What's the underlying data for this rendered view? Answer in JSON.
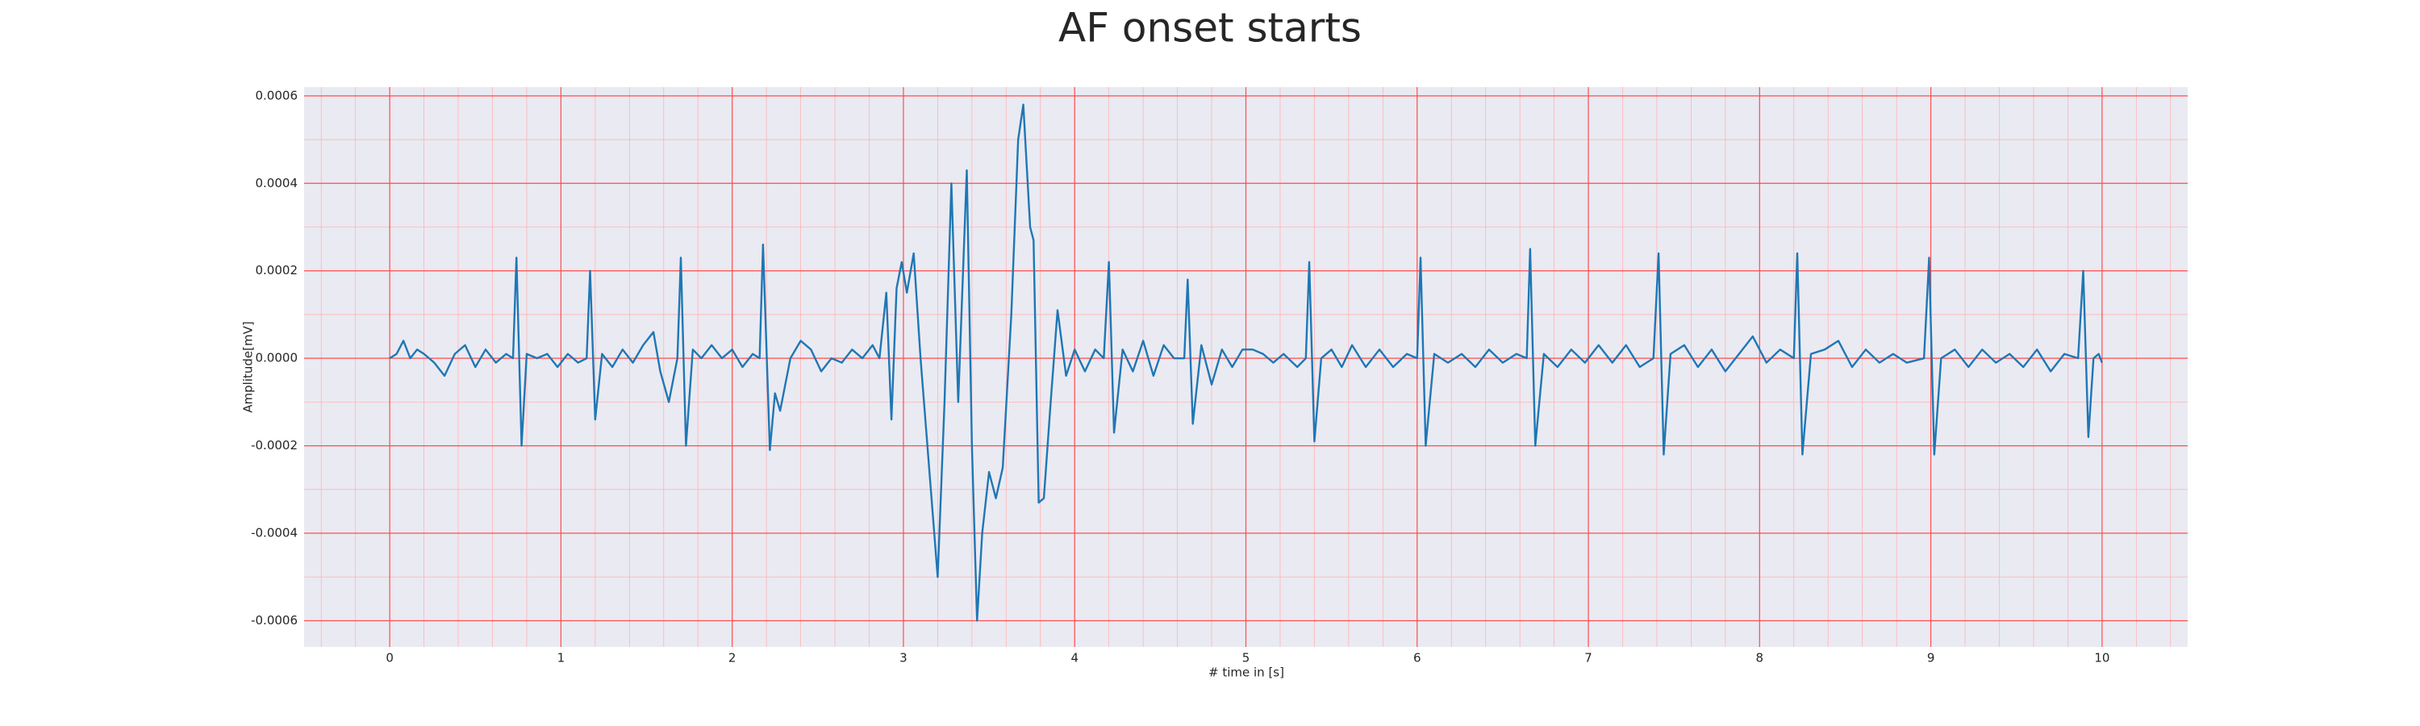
{
  "chart_data": {
    "type": "line",
    "title": "AF onset starts",
    "xlabel": "# time in [s]",
    "ylabel": "Amplitude[mV]",
    "x": [
      0,
      0.04,
      0.08,
      0.12,
      0.16,
      0.2,
      0.26,
      0.32,
      0.38,
      0.44,
      0.5,
      0.56,
      0.62,
      0.68,
      0.72,
      0.74,
      0.77,
      0.8,
      0.86,
      0.92,
      0.98,
      1.04,
      1.1,
      1.15,
      1.17,
      1.2,
      1.24,
      1.3,
      1.36,
      1.42,
      1.48,
      1.54,
      1.58,
      1.63,
      1.68,
      1.7,
      1.73,
      1.77,
      1.82,
      1.88,
      1.94,
      2.0,
      2.06,
      2.12,
      2.16,
      2.18,
      2.22,
      2.25,
      2.28,
      2.34,
      2.4,
      2.46,
      2.52,
      2.58,
      2.64,
      2.7,
      2.76,
      2.82,
      2.86,
      2.9,
      2.93,
      2.96,
      2.99,
      3.02,
      3.06,
      3.1,
      3.16,
      3.2,
      3.24,
      3.28,
      3.32,
      3.37,
      3.4,
      3.43,
      3.46,
      3.5,
      3.54,
      3.58,
      3.63,
      3.67,
      3.7,
      3.74,
      3.76,
      3.79,
      3.82,
      3.86,
      3.9,
      3.95,
      4.0,
      4.06,
      4.12,
      4.17,
      4.2,
      4.23,
      4.28,
      4.34,
      4.4,
      4.46,
      4.52,
      4.58,
      4.64,
      4.66,
      4.69,
      4.74,
      4.8,
      4.86,
      4.92,
      4.98,
      5.04,
      5.1,
      5.16,
      5.22,
      5.3,
      5.35,
      5.37,
      5.4,
      5.44,
      5.5,
      5.56,
      5.62,
      5.7,
      5.78,
      5.86,
      5.94,
      6.0,
      6.02,
      6.05,
      6.1,
      6.18,
      6.26,
      6.34,
      6.42,
      6.5,
      6.58,
      6.64,
      6.66,
      6.69,
      6.74,
      6.82,
      6.9,
      6.98,
      7.06,
      7.14,
      7.22,
      7.3,
      7.38,
      7.41,
      7.44,
      7.48,
      7.56,
      7.64,
      7.72,
      7.8,
      7.88,
      7.96,
      8.04,
      8.12,
      8.2,
      8.22,
      8.25,
      8.3,
      8.38,
      8.46,
      8.54,
      8.62,
      8.7,
      8.78,
      8.86,
      8.96,
      8.99,
      9.02,
      9.06,
      9.14,
      9.22,
      9.3,
      9.38,
      9.46,
      9.54,
      9.62,
      9.7,
      9.78,
      9.86,
      9.89,
      9.92,
      9.95,
      9.98,
      10.0
    ],
    "series": [
      {
        "color": "#1f77b4",
        "values": [
          0,
          1e-05,
          4e-05,
          0,
          2e-05,
          1e-05,
          -1e-05,
          -4e-05,
          1e-05,
          3e-05,
          -2e-05,
          2e-05,
          -1e-05,
          1e-05,
          0,
          0.00023,
          -0.0002,
          1e-05,
          0,
          1e-05,
          -2e-05,
          1e-05,
          -1e-05,
          0,
          0.0002,
          -0.00014,
          1e-05,
          -2e-05,
          2e-05,
          -1e-05,
          3e-05,
          6e-05,
          -3e-05,
          -0.0001,
          0,
          0.00023,
          -0.0002,
          2e-05,
          0,
          3e-05,
          0,
          2e-05,
          -2e-05,
          1e-05,
          0,
          0.00026,
          -0.00021,
          -8e-05,
          -0.00012,
          0,
          4e-05,
          2e-05,
          -3e-05,
          0,
          -1e-05,
          2e-05,
          0,
          3e-05,
          0,
          0.00015,
          -0.00014,
          0.00016,
          0.00022,
          0.00015,
          0.00024,
          0,
          -0.0003,
          -0.0005,
          -0.0001,
          0.0004,
          -0.0001,
          0.00043,
          -0.0002,
          -0.0006,
          -0.0004,
          -0.00026,
          -0.00032,
          -0.00025,
          0.0001,
          0.0005,
          0.00058,
          0.0003,
          0.00027,
          -0.00033,
          -0.00032,
          -0.0001,
          0.00011,
          -4e-05,
          2e-05,
          -3e-05,
          2e-05,
          0,
          0.00022,
          -0.00017,
          2e-05,
          -3e-05,
          4e-05,
          -4e-05,
          3e-05,
          0,
          0,
          0.00018,
          -0.00015,
          3e-05,
          -6e-05,
          2e-05,
          -2e-05,
          2e-05,
          2e-05,
          1e-05,
          -1e-05,
          1e-05,
          -2e-05,
          0,
          0.00022,
          -0.00019,
          0,
          2e-05,
          -2e-05,
          3e-05,
          -2e-05,
          2e-05,
          -2e-05,
          1e-05,
          0,
          0.00023,
          -0.0002,
          1e-05,
          -1e-05,
          1e-05,
          -2e-05,
          2e-05,
          -1e-05,
          1e-05,
          0,
          0.00025,
          -0.0002,
          1e-05,
          -2e-05,
          2e-05,
          -1e-05,
          3e-05,
          -1e-05,
          3e-05,
          -2e-05,
          0,
          0.00024,
          -0.00022,
          1e-05,
          3e-05,
          -2e-05,
          2e-05,
          -3e-05,
          1e-05,
          5e-05,
          -1e-05,
          2e-05,
          0,
          0.00024,
          -0.00022,
          1e-05,
          2e-05,
          4e-05,
          -2e-05,
          2e-05,
          -1e-05,
          1e-05,
          -1e-05,
          0,
          0.00023,
          -0.00022,
          0,
          2e-05,
          -2e-05,
          2e-05,
          -1e-05,
          1e-05,
          -2e-05,
          2e-05,
          -3e-05,
          1e-05,
          0,
          0.0002,
          -0.00018,
          0,
          1e-05,
          -1e-05
        ]
      }
    ],
    "xlim": [
      -0.5,
      10.5
    ],
    "ylim": [
      -0.00066,
      0.00062
    ],
    "xticks": [
      0,
      1,
      2,
      3,
      4,
      5,
      6,
      7,
      8,
      9,
      10
    ],
    "yticks": [
      -0.0006,
      -0.0004,
      -0.0002,
      {
        "value": 0,
        "label": "0.0000"
      },
      0.0002,
      0.0004,
      0.0006
    ],
    "grid": true,
    "minor_grid": true
  }
}
